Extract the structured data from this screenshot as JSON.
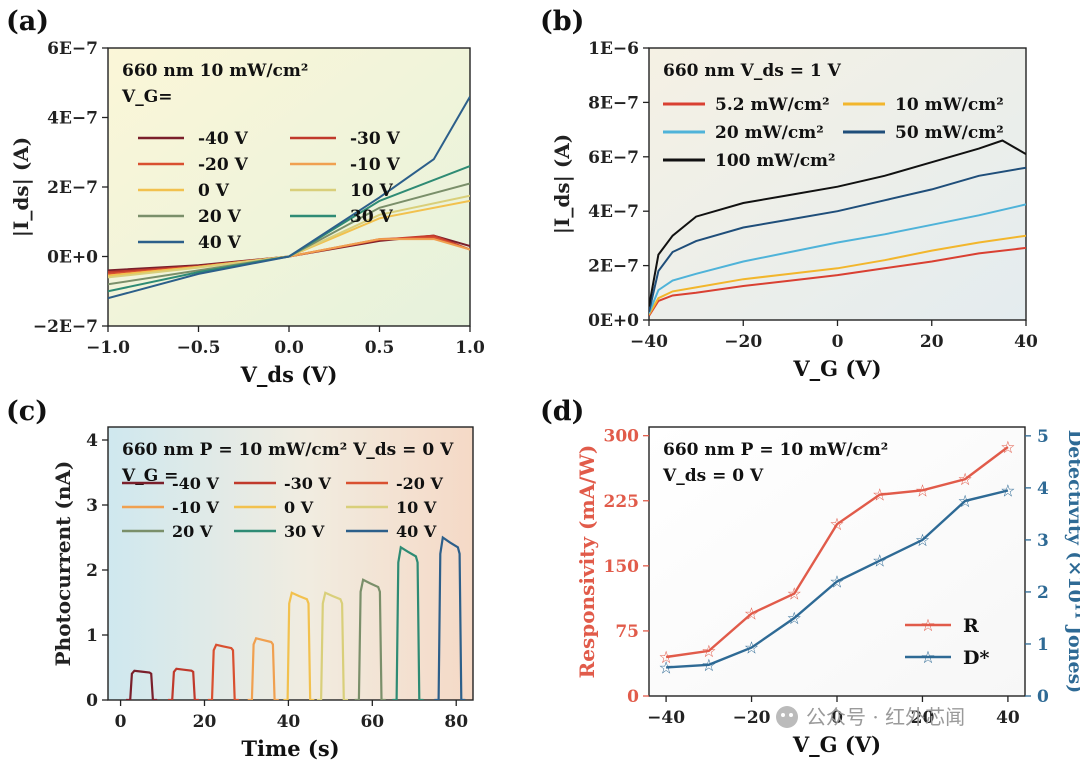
{
  "watermark": "公众号 · 红外芯闻",
  "chart_data": [
    {
      "id": "a",
      "panel_label": "(a)",
      "type": "line",
      "xlabel": "V_ds (V)",
      "ylabel": "|I_ds| (A)",
      "xlim": [
        -1.0,
        1.0
      ],
      "ylim": [
        -2e-07,
        6e-07
      ],
      "x_ticks": [
        -1.0,
        -0.5,
        0.0,
        0.5,
        1.0
      ],
      "x_tick_labels": [
        "−1.0",
        "−0.5",
        "0.0",
        "0.5",
        "1.0"
      ],
      "y_ticks": [
        -2e-07,
        0,
        2e-07,
        4e-07,
        6e-07
      ],
      "y_tick_labels": [
        "−2E−7",
        "0E+0",
        "2E−7",
        "4E−7",
        "6E−7"
      ],
      "annotation_lines": [
        "660 nm 10 mW/cm²",
        "V_G="
      ],
      "legend_placement": "top-left",
      "series": [
        {
          "name": "-40 V",
          "color": "#7a1f2b",
          "x": [
            -1.0,
            -0.5,
            0.0,
            0.5,
            0.8,
            1.0
          ],
          "y": [
            -4e-08,
            -2.5e-08,
            0,
            4.5e-08,
            6e-08,
            3e-08
          ]
        },
        {
          "name": "-30 V",
          "color": "#c0392b",
          "x": [
            -1.0,
            -0.5,
            0.0,
            0.5,
            0.8,
            1.0
          ],
          "y": [
            -4.5e-08,
            -2.8e-08,
            0,
            4.8e-08,
            6e-08,
            2e-08
          ]
        },
        {
          "name": "-20 V",
          "color": "#d95030",
          "x": [
            -1.0,
            -0.5,
            0.0,
            0.5,
            0.8,
            1.0
          ],
          "y": [
            -5e-08,
            -3e-08,
            0,
            5e-08,
            5.5e-08,
            2e-08
          ]
        },
        {
          "name": "-10 V",
          "color": "#f0a050",
          "x": [
            -1.0,
            -0.5,
            0.0,
            0.5,
            0.8,
            1.0
          ],
          "y": [
            -5.5e-08,
            -3e-08,
            0,
            5e-08,
            5e-08,
            2e-08
          ]
        },
        {
          "name": "0 V",
          "color": "#f2c14e",
          "x": [
            -1.0,
            -0.5,
            0.0,
            0.5,
            1.0
          ],
          "y": [
            -5.5e-08,
            -3e-08,
            0,
            1.1e-07,
            1.6e-07
          ]
        },
        {
          "name": "10 V",
          "color": "#d9cf7a",
          "x": [
            -1.0,
            -0.5,
            0.0,
            0.5,
            1.0
          ],
          "y": [
            -6e-08,
            -3.2e-08,
            0,
            1.2e-07,
            1.75e-07
          ]
        },
        {
          "name": "20 V",
          "color": "#7a8f6a",
          "x": [
            -1.0,
            -0.5,
            0.0,
            0.5,
            1.0
          ],
          "y": [
            -8e-08,
            -4e-08,
            0,
            1.4e-07,
            2.1e-07
          ]
        },
        {
          "name": "30 V",
          "color": "#2e8b74",
          "x": [
            -1.0,
            -0.5,
            0.0,
            0.5,
            1.0
          ],
          "y": [
            -1e-07,
            -4.5e-08,
            0,
            1.6e-07,
            2.6e-07
          ]
        },
        {
          "name": "40 V",
          "color": "#2c5f8a",
          "x": [
            -1.0,
            -0.5,
            0.0,
            0.5,
            0.8,
            1.0
          ],
          "y": [
            -1.2e-07,
            -5e-08,
            0,
            1.7e-07,
            2.8e-07,
            4.6e-07
          ]
        }
      ]
    },
    {
      "id": "b",
      "panel_label": "(b)",
      "type": "line",
      "xlabel": "V_G (V)",
      "ylabel": "|I_ds| (A)",
      "xlim": [
        -40,
        40
      ],
      "ylim": [
        0,
        1e-06
      ],
      "x_ticks": [
        -40,
        -20,
        0,
        20,
        40
      ],
      "x_tick_labels": [
        "−40",
        "−20",
        "0",
        "20",
        "40"
      ],
      "y_ticks": [
        0,
        2e-07,
        4e-07,
        6e-07,
        8e-07,
        1e-06
      ],
      "y_tick_labels": [
        "0E+0",
        "2E−7",
        "4E−7",
        "6E−7",
        "8E−7",
        "1E−6"
      ],
      "annotation_lines": [
        "660 nm  V_ds = 1 V"
      ],
      "legend_placement": "top",
      "series": [
        {
          "name": "5.2 mW/cm²",
          "color": "#d94032",
          "x": [
            -40,
            -38,
            -35,
            -30,
            -20,
            -10,
            0,
            10,
            20,
            30,
            40
          ],
          "y": [
            1.5e-08,
            7e-08,
            9e-08,
            1e-07,
            1.25e-07,
            1.45e-07,
            1.65e-07,
            1.9e-07,
            2.15e-07,
            2.45e-07,
            2.65e-07
          ]
        },
        {
          "name": "10 mW/cm²",
          "color": "#f2b62c",
          "x": [
            -40,
            -38,
            -35,
            -30,
            -20,
            -10,
            0,
            10,
            20,
            30,
            40
          ],
          "y": [
            2e-08,
            8e-08,
            1.05e-07,
            1.2e-07,
            1.5e-07,
            1.7e-07,
            1.9e-07,
            2.2e-07,
            2.55e-07,
            2.85e-07,
            3.1e-07
          ]
        },
        {
          "name": "20 mW/cm²",
          "color": "#4fb3d9",
          "x": [
            -40,
            -38,
            -35,
            -30,
            -20,
            -10,
            0,
            10,
            20,
            30,
            40
          ],
          "y": [
            2.5e-08,
            1.1e-07,
            1.45e-07,
            1.7e-07,
            2.15e-07,
            2.5e-07,
            2.85e-07,
            3.15e-07,
            3.5e-07,
            3.85e-07,
            4.25e-07
          ]
        },
        {
          "name": "50 mW/cm²",
          "color": "#1f4e7a",
          "x": [
            -40,
            -38,
            -35,
            -30,
            -20,
            -10,
            0,
            10,
            20,
            30,
            40
          ],
          "y": [
            3e-08,
            1.8e-07,
            2.5e-07,
            2.9e-07,
            3.4e-07,
            3.7e-07,
            4e-07,
            4.4e-07,
            4.8e-07,
            5.3e-07,
            5.6e-07
          ]
        },
        {
          "name": "100 mW/cm²",
          "color": "#111111",
          "x": [
            -40,
            -38,
            -35,
            -30,
            -20,
            -10,
            0,
            10,
            20,
            30,
            35,
            40
          ],
          "y": [
            5e-08,
            2.4e-07,
            3.1e-07,
            3.8e-07,
            4.3e-07,
            4.6e-07,
            4.9e-07,
            5.3e-07,
            5.8e-07,
            6.3e-07,
            6.6e-07,
            6.1e-07
          ]
        }
      ]
    },
    {
      "id": "c",
      "panel_label": "(c)",
      "type": "line",
      "xlabel": "Time (s)",
      "ylabel": "Photocurrent (nA)",
      "xlim": [
        -3,
        84
      ],
      "ylim": [
        0,
        4.2
      ],
      "x_ticks": [
        0,
        20,
        40,
        60,
        80
      ],
      "x_tick_labels": [
        "0",
        "20",
        "40",
        "60",
        "80"
      ],
      "y_ticks": [
        0,
        1,
        2,
        3,
        4
      ],
      "y_tick_labels": [
        "0",
        "1",
        "2",
        "3",
        "4"
      ],
      "annotation_lines": [
        "660 nm P = 10 mW/cm²   V_ds = 0 V",
        "V_G ="
      ],
      "legend_placement": "top",
      "series": [
        {
          "name": "-40 V",
          "color": "#7a1f2b",
          "pulse_start": 2.5,
          "pulse_end": 7.5,
          "level": 0.45
        },
        {
          "name": "-30 V",
          "color": "#c0392b",
          "pulse_start": 12.5,
          "pulse_end": 17.5,
          "level": 0.48
        },
        {
          "name": "-20 V",
          "color": "#d95030",
          "pulse_start": 22,
          "pulse_end": 27,
          "level": 0.85
        },
        {
          "name": "-10 V",
          "color": "#f0a050",
          "pulse_start": 31.5,
          "pulse_end": 36.5,
          "level": 0.95
        },
        {
          "name": "0 V",
          "color": "#f2c14e",
          "pulse_start": 40,
          "pulse_end": 45,
          "level": 1.65
        },
        {
          "name": "10 V",
          "color": "#d9cf7a",
          "pulse_start": 48,
          "pulse_end": 53,
          "level": 1.65
        },
        {
          "name": "20 V",
          "color": "#7a8f6a",
          "pulse_start": 57,
          "pulse_end": 62,
          "level": 1.85
        },
        {
          "name": "30 V",
          "color": "#2e8b74",
          "pulse_start": 66,
          "pulse_end": 71,
          "level": 2.35
        },
        {
          "name": "40 V",
          "color": "#2c5f8a",
          "pulse_start": 76,
          "pulse_end": 81,
          "level": 2.5
        }
      ]
    },
    {
      "id": "d",
      "panel_label": "(d)",
      "type": "line",
      "xlabel": "V_G (V)",
      "ylabel": "Responsivity (mA/W)",
      "ylabel_right": "Detectivity (×10¹¹ Jones)",
      "xlim": [
        -44,
        44
      ],
      "ylim": [
        0,
        310
      ],
      "ylim_right": [
        0,
        5.17
      ],
      "x_ticks": [
        -40,
        -20,
        0,
        20,
        40
      ],
      "x_tick_labels": [
        "−40",
        "−20",
        "0",
        "20",
        "40"
      ],
      "y_ticks": [
        0,
        75,
        150,
        225,
        300
      ],
      "y_tick_labels": [
        "0",
        "75",
        "150",
        "225",
        "300"
      ],
      "y_ticks_right": [
        0,
        1,
        2,
        3,
        4,
        5
      ],
      "y_tick_labels_right": [
        "0",
        "1",
        "2",
        "3",
        "4",
        "5"
      ],
      "annotation_lines": [
        "660 nm P = 10 mW/cm²",
        "V_ds = 0 V"
      ],
      "legend_placement": "bottom-right",
      "series": [
        {
          "name": "R",
          "color": "#e15b4a",
          "axis": "left",
          "x": [
            -40,
            -30,
            -20,
            -10,
            0,
            10,
            20,
            30,
            40
          ],
          "y": [
            45,
            52,
            95,
            118,
            198,
            232,
            237,
            250,
            287
          ]
        },
        {
          "name": "D*",
          "color": "#2e6a95",
          "axis": "right",
          "x": [
            -40,
            -30,
            -20,
            -10,
            0,
            10,
            20,
            30,
            40
          ],
          "y": [
            0.55,
            0.6,
            0.93,
            1.5,
            2.2,
            2.6,
            3.0,
            3.75,
            3.95
          ]
        }
      ]
    }
  ]
}
